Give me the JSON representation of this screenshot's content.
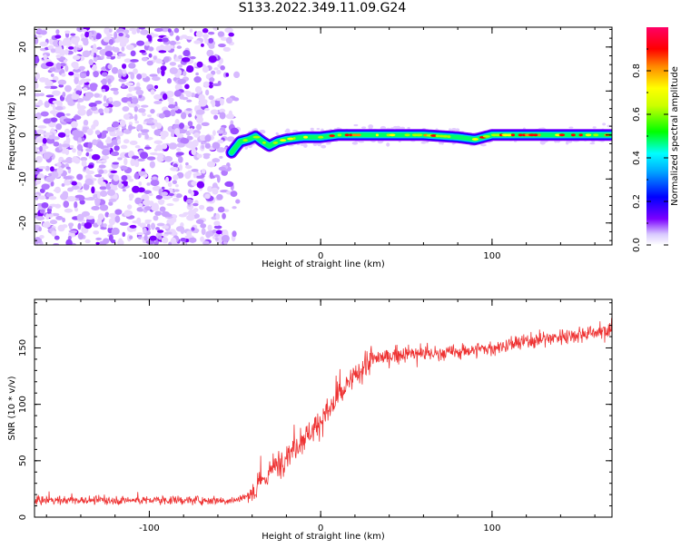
{
  "title": "S133.2022.349.11.09.G24",
  "chart_data": [
    {
      "type": "heatmap",
      "title": "S133.2022.349.11.09.G24",
      "xlabel": "Height of straight line (km)",
      "ylabel": "Frequency (Hz)",
      "xlim": [
        -167,
        170
      ],
      "ylim": [
        -25,
        24.5
      ],
      "x_ticks": [
        -100,
        0,
        100
      ],
      "y_ticks": [
        -20,
        -10,
        0,
        10,
        20
      ],
      "noise_region_x": [
        -167,
        -52
      ],
      "signal_track": {
        "x": [
          -52,
          -47,
          -42,
          -38,
          -34,
          -30,
          -25,
          -20,
          -10,
          0,
          10,
          20,
          40,
          60,
          80,
          90,
          100,
          120,
          140,
          170
        ],
        "frequency": [
          -4,
          -1.5,
          -1,
          -0.3,
          -1.5,
          -2.5,
          -1.5,
          -1,
          -0.5,
          -0.5,
          0,
          0,
          0,
          0,
          -0.5,
          -1,
          0,
          0,
          0,
          0
        ]
      },
      "colorbar": {
        "label": "Normalized spectral amplitude",
        "range": [
          0,
          1
        ],
        "ticks": [
          0.0,
          0.2,
          0.4,
          0.6,
          0.8
        ],
        "colors": [
          "#ffffff",
          "#7b00ff",
          "#0000ff",
          "#00ffff",
          "#00ff00",
          "#ffff00",
          "#ff0000",
          "#ff0088"
        ]
      }
    },
    {
      "type": "line",
      "xlabel": "Height of straight line (km)",
      "ylabel": "SNR (10 * v/v)",
      "xlim": [
        -167,
        170
      ],
      "ylim": [
        0,
        193
      ],
      "x_ticks": [
        -100,
        0,
        100
      ],
      "y_ticks": [
        0,
        50,
        100,
        150
      ],
      "color": "#ee3333",
      "trend": {
        "x": [
          -167,
          -100,
          -50,
          -40,
          -30,
          -20,
          -10,
          0,
          10,
          20,
          30,
          50,
          70,
          100,
          130,
          150,
          170
        ],
        "y": [
          15,
          15,
          15,
          20,
          40,
          55,
          70,
          85,
          105,
          125,
          140,
          145,
          145,
          150,
          158,
          162,
          166
        ]
      }
    }
  ]
}
